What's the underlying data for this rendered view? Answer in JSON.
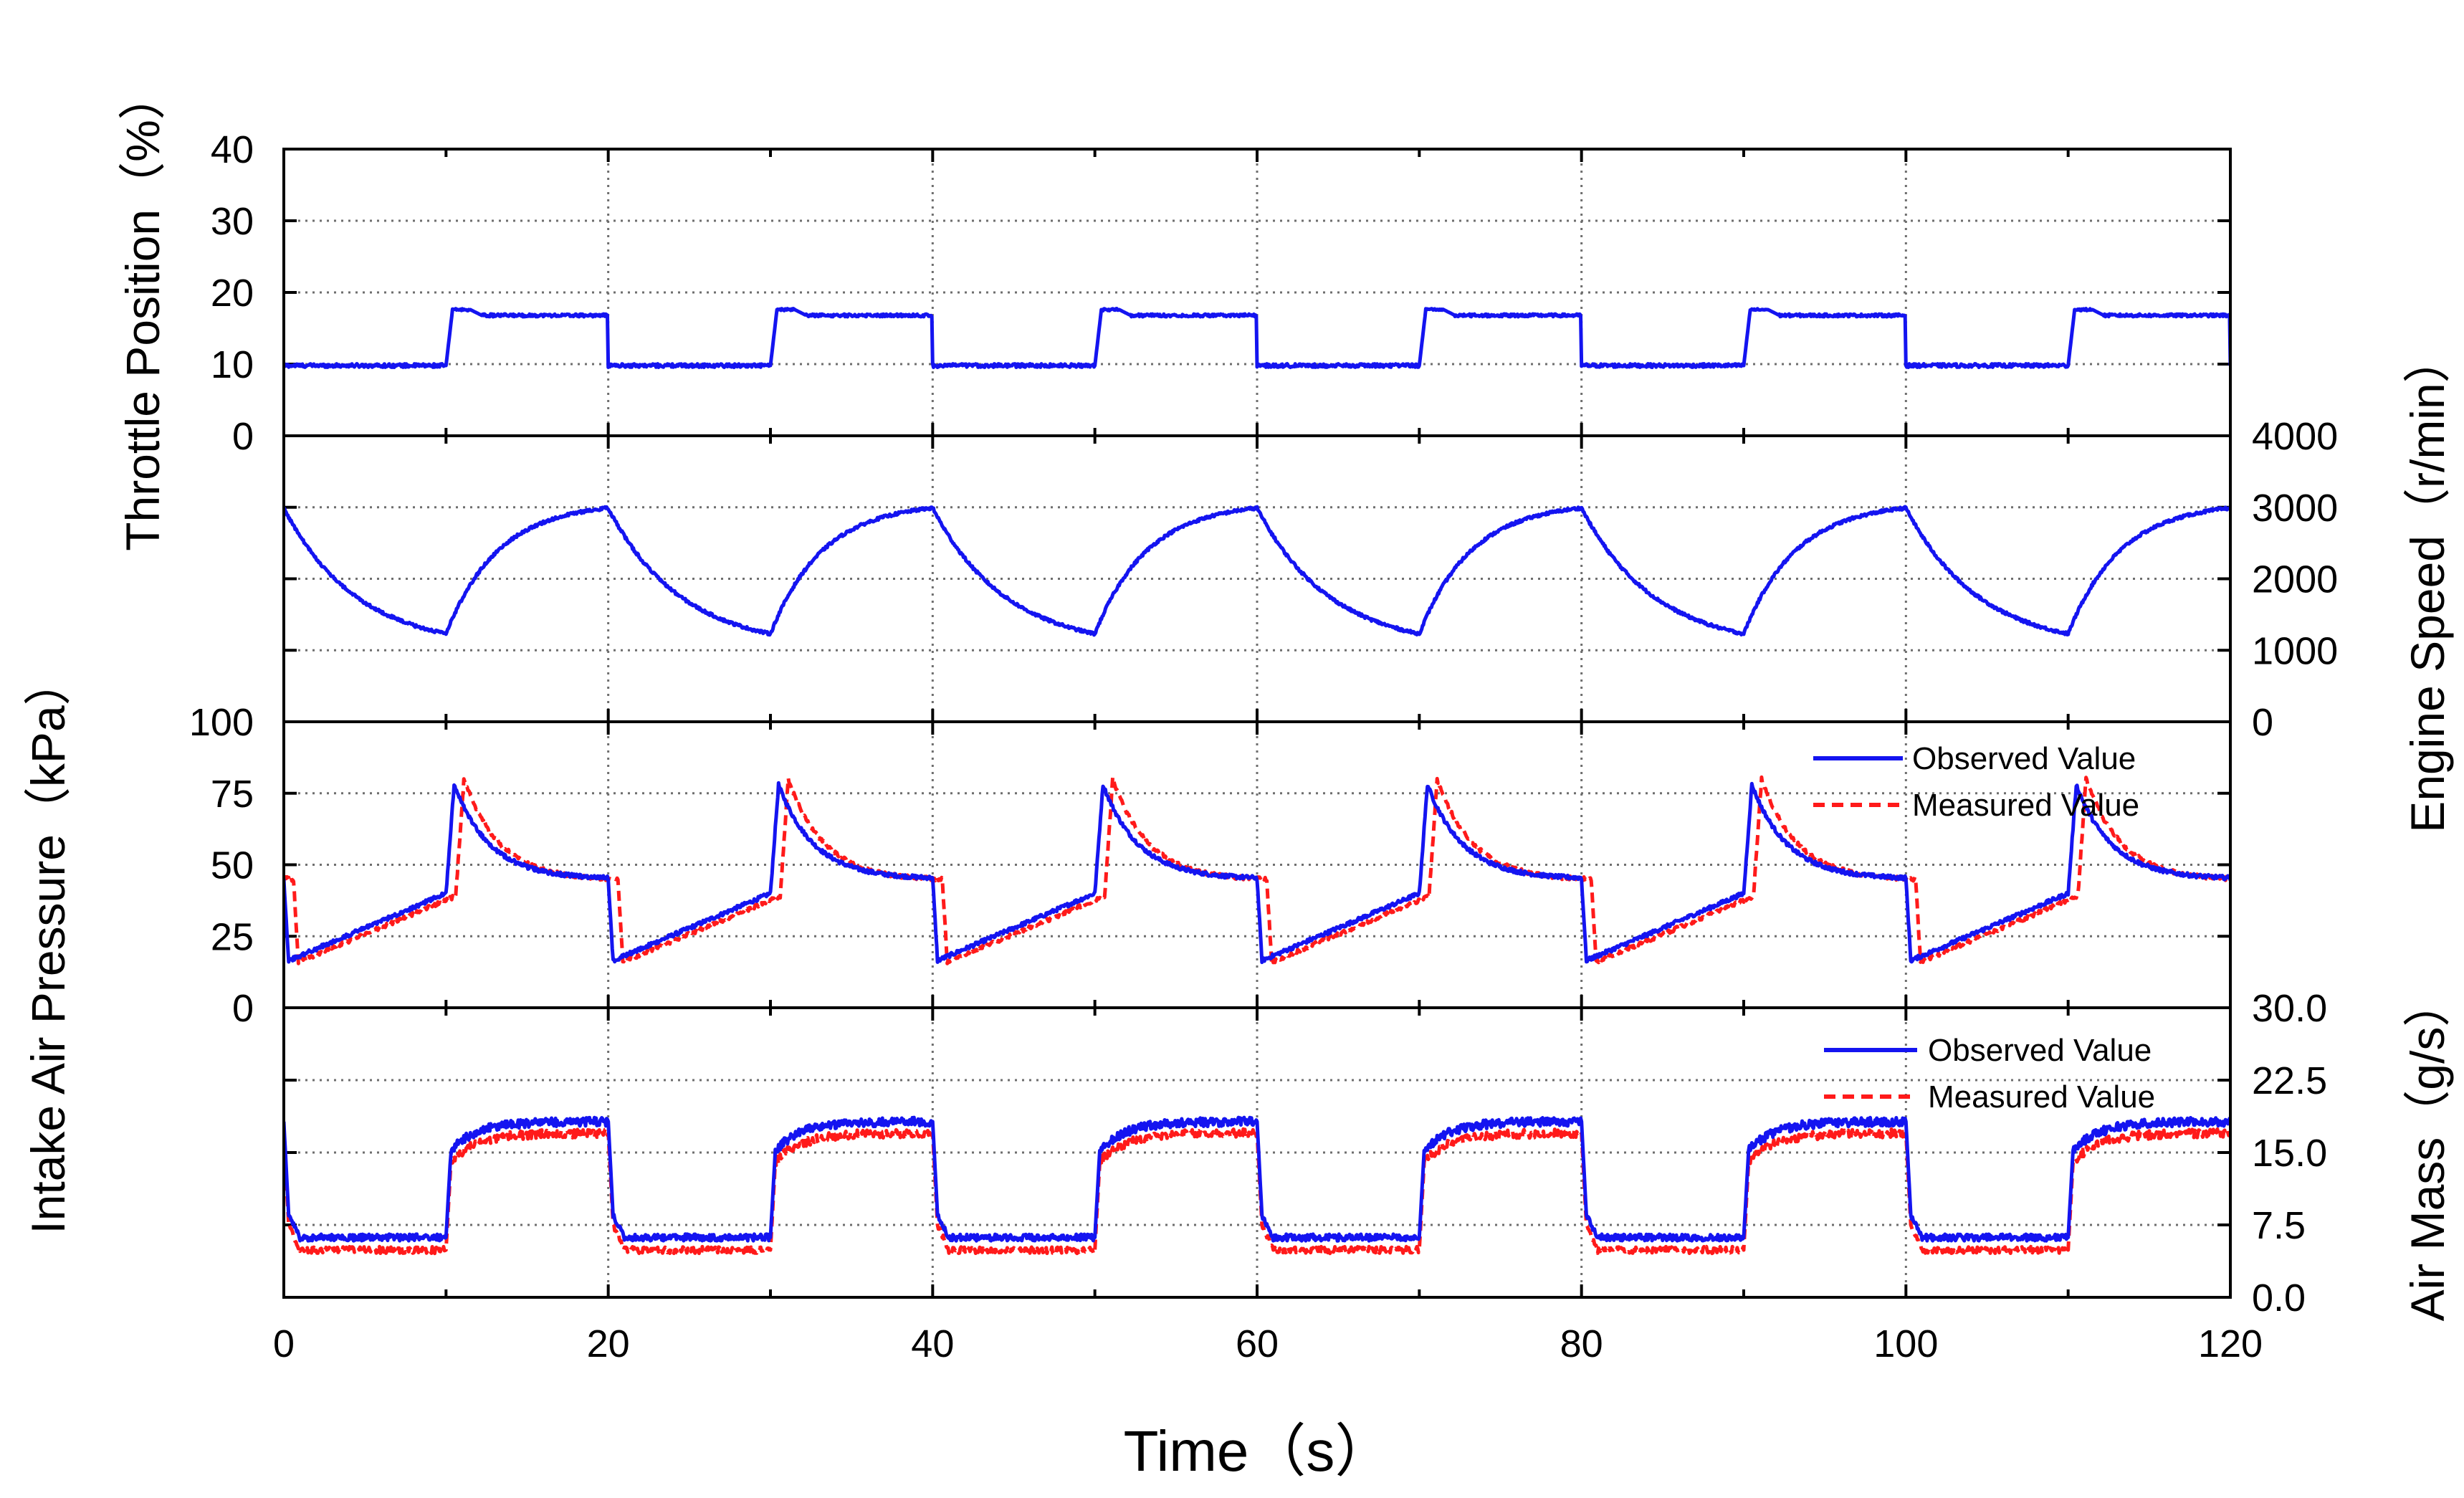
{
  "chart_data": {
    "type": "line",
    "xlabel": "Time（s）",
    "xlim": [
      0,
      120
    ],
    "xticks": [
      "0",
      "20",
      "40",
      "60",
      "80",
      "100",
      "120"
    ],
    "panels": [
      {
        "id": "throttle",
        "ylabel": "Throttle Position（%）",
        "ylabel_side": "left",
        "ylim": [
          0,
          40
        ],
        "ytick_values": [
          0,
          10,
          20,
          30,
          40
        ],
        "ytick_labels": [
          "0",
          "10",
          "20",
          "30",
          "40"
        ],
        "ytick_side": "left",
        "series": [
          {
            "name": "Throttle Position",
            "color": "#1414f0",
            "style": "solid",
            "profile": "throttle",
            "low": 9.8,
            "high": 16.8,
            "overshoot": 17.6
          }
        ]
      },
      {
        "id": "speed",
        "ylabel": "Engine Speed（r/min）",
        "ylabel_side": "right",
        "ylim": [
          0,
          4000
        ],
        "ytick_values": [
          0,
          1000,
          2000,
          3000,
          4000
        ],
        "ytick_labels": [
          "0",
          "1000",
          "2000",
          "3000",
          "4000"
        ],
        "ytick_side": "right",
        "series": [
          {
            "name": "Engine Speed",
            "color": "#1414f0",
            "style": "solid",
            "profile": "speed",
            "low": 1230,
            "high": 2990
          }
        ]
      },
      {
        "id": "pressure",
        "ylabel": "Intake Air Pressure（kPa）",
        "ylabel_side": "left",
        "ylim": [
          0,
          100
        ],
        "ytick_values": [
          0,
          25,
          50,
          75,
          100
        ],
        "ytick_labels": [
          "0",
          "25",
          "50",
          "75",
          "100"
        ],
        "ytick_side": "left",
        "legend_position": "top-right",
        "series": [
          {
            "name": "Observed Value",
            "color": "#1414f0",
            "style": "solid",
            "profile": "pressure",
            "start_low": 16.5,
            "ramp_end": 40,
            "peak": 78,
            "decay_end": 45,
            "offset": 0
          },
          {
            "name": "Measured Value",
            "color": "#ff1a1a",
            "style": "dashed",
            "profile": "pressure",
            "start_low": 16,
            "ramp_end": 39,
            "peak": 80,
            "decay_end": 44.5,
            "offset": 0.6
          }
        ]
      },
      {
        "id": "airmass",
        "ylabel": "Air Mass（g/s）",
        "ylabel_side": "right",
        "ylim": [
          0,
          30
        ],
        "ytick_values": [
          0,
          7.5,
          15,
          22.5,
          30
        ],
        "ytick_labels": [
          "0.0",
          "7.5",
          "15.0",
          "22.5",
          "30.0"
        ],
        "ytick_side": "right",
        "legend_position": "top-right",
        "series": [
          {
            "name": "Observed Value",
            "color": "#1414f0",
            "style": "solid",
            "profile": "airmass",
            "low": 6.2,
            "high": 18.2,
            "spike": 8.5
          },
          {
            "name": "Measured Value",
            "color": "#ff1a1a",
            "style": "dashed",
            "profile": "airmass",
            "low": 4.9,
            "high": 17.0,
            "spike": 7.5
          }
        ]
      }
    ]
  }
}
